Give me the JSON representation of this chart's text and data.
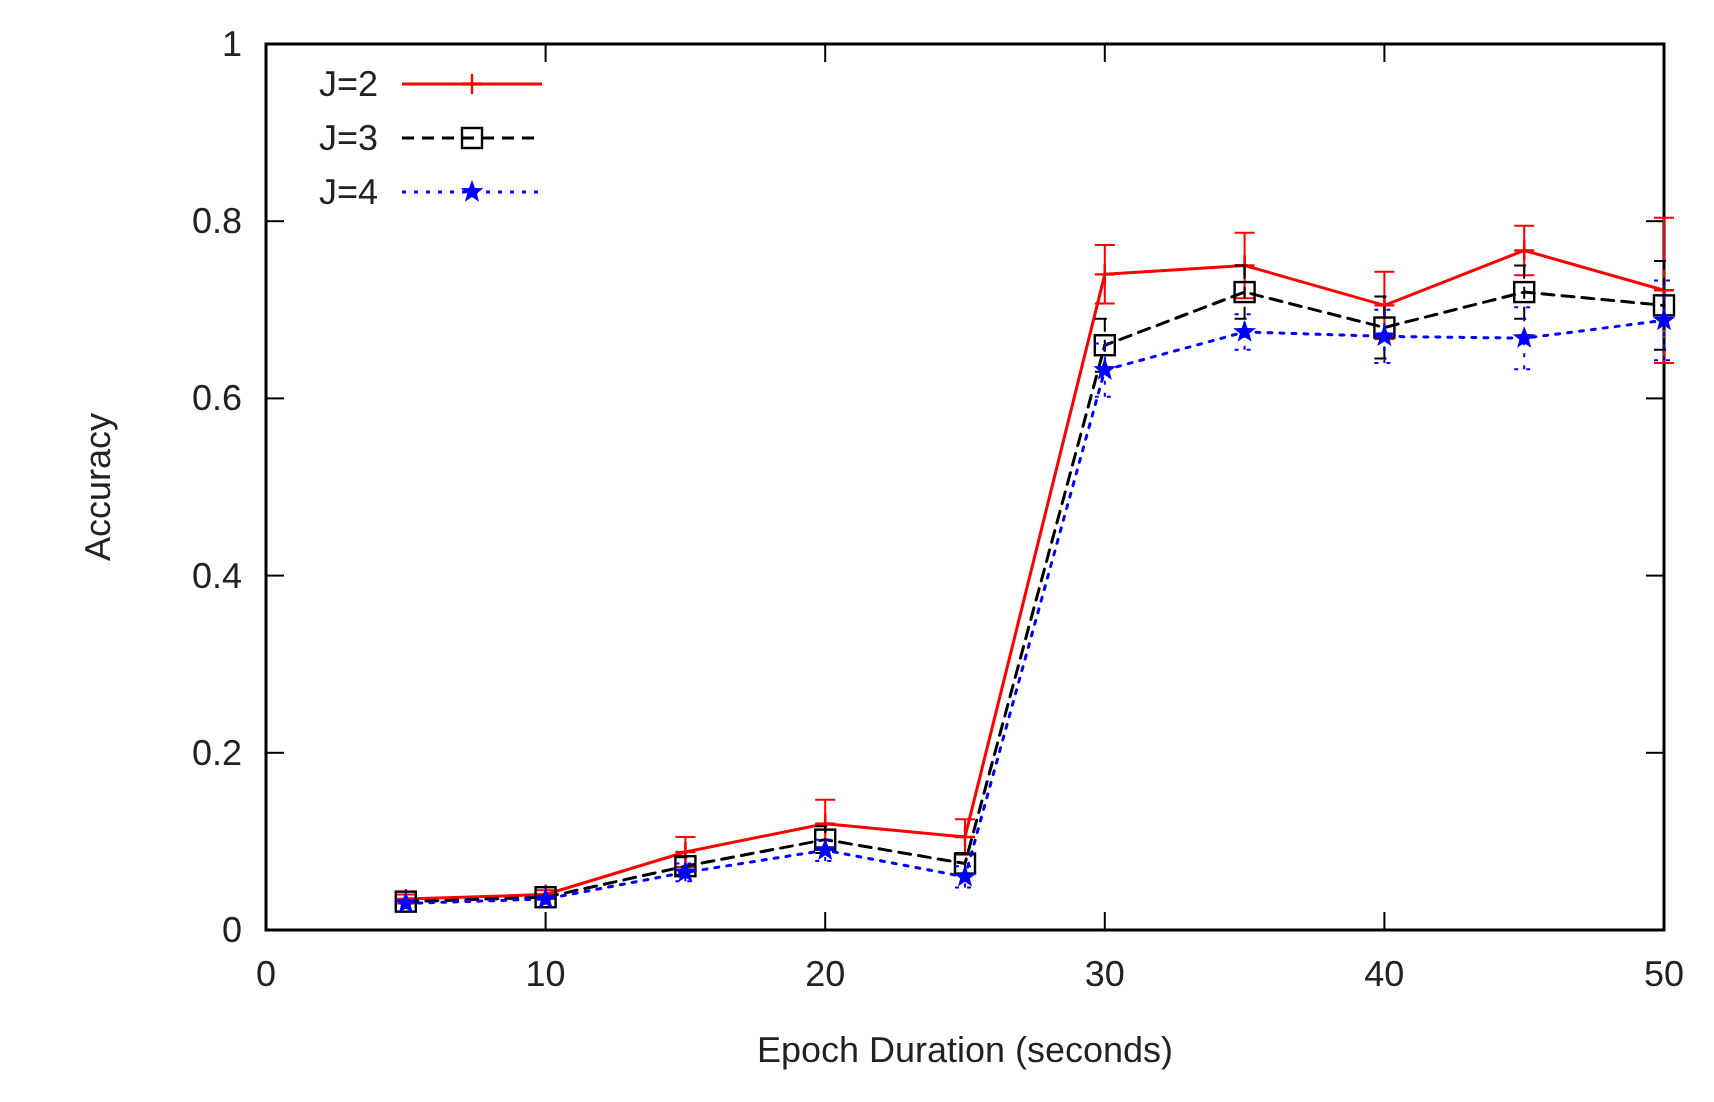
{
  "chart_data": {
    "type": "line",
    "xlabel": "Epoch Duration (seconds)",
    "ylabel": "Accuracy",
    "x": [
      5,
      10,
      15,
      20,
      25,
      30,
      35,
      40,
      45,
      50
    ],
    "series": [
      {
        "name": "J=2",
        "color": "#ff0000",
        "marker": "cross",
        "line_style": "solid",
        "values": [
          0.035,
          0.04,
          0.088,
          0.12,
          0.105,
          0.74,
          0.75,
          0.705,
          0.767,
          0.722
        ],
        "errors": [
          0.005,
          0.005,
          0.017,
          0.027,
          0.02,
          0.033,
          0.037,
          0.038,
          0.028,
          0.082
        ]
      },
      {
        "name": "J=3",
        "color": "#000000",
        "marker": "square",
        "line_style": "dashed",
        "values": [
          0.032,
          0.037,
          0.072,
          0.102,
          0.075,
          0.66,
          0.72,
          0.68,
          0.72,
          0.705
        ],
        "errors": [
          null,
          null,
          0.01,
          0.015,
          0.012,
          0.03,
          0.03,
          0.035,
          0.03,
          0.05
        ]
      },
      {
        "name": "J=4",
        "color": "#0000ff",
        "marker": "star",
        "line_style": "dotted",
        "values": [
          0.03,
          0.035,
          0.065,
          0.09,
          0.06,
          0.632,
          0.675,
          0.67,
          0.668,
          0.688
        ],
        "errors": [
          null,
          null,
          0.01,
          0.012,
          0.012,
          0.03,
          0.02,
          0.03,
          0.035,
          0.045
        ]
      }
    ],
    "xlim": [
      0,
      50
    ],
    "xticks": [
      0,
      10,
      20,
      30,
      40,
      50
    ],
    "ylim": [
      0,
      1
    ],
    "yticks": [
      0,
      0.2,
      0.4,
      0.6,
      0.8,
      1
    ],
    "grid": false,
    "legend": "top left"
  }
}
